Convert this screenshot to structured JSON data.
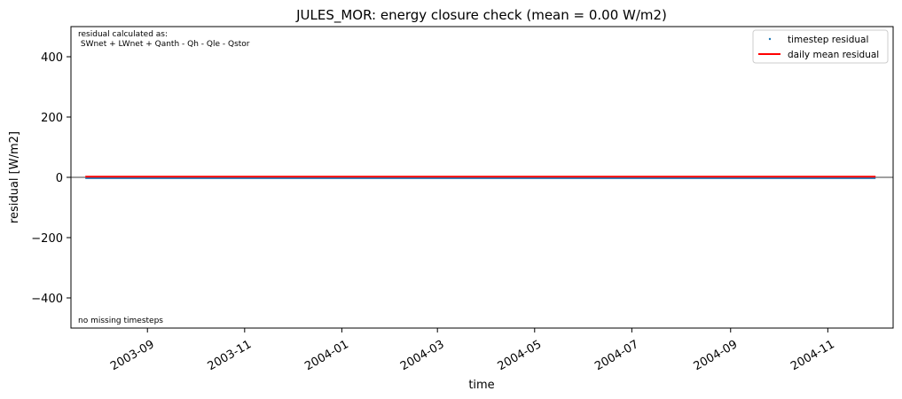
{
  "chart_data": {
    "type": "line",
    "title": "JULES_MOR: energy closure check (mean = 0.00 W/m2)",
    "xlabel": "time",
    "ylabel": "residual [W/m2]",
    "ylim": [
      -500,
      500
    ],
    "xlim": [
      "2003-07-15",
      "2004-12-12"
    ],
    "yticks": [
      -400,
      -200,
      0,
      200,
      400
    ],
    "xticks": [
      "2003-09-01",
      "2003-11-01",
      "2004-01-01",
      "2004-03-01",
      "2004-05-01",
      "2004-07-01",
      "2004-09-01",
      "2004-11-01"
    ],
    "xtick_labels": [
      "2003-09",
      "2003-11",
      "2004-01",
      "2004-03",
      "2004-05",
      "2004-07",
      "2004-09",
      "2004-11"
    ],
    "zero_line": true,
    "grid": false,
    "legend_position": "upper right",
    "series": [
      {
        "name": "timestep residual",
        "style": "points",
        "color": "#1f77b4",
        "x": [
          "2003-07-24",
          "2004-12-01"
        ],
        "y": [
          0,
          0
        ]
      },
      {
        "name": "daily mean residual",
        "style": "line",
        "color": "#ff0000",
        "x": [
          "2003-07-24",
          "2004-12-01"
        ],
        "y": [
          0,
          0
        ]
      }
    ],
    "annotations": {
      "top_left_line1": "residual calculated as:",
      "top_left_line2": " SWnet + LWnet + Qanth - Qh - Qle - Qstor",
      "bottom_left": "no missing timesteps"
    }
  }
}
